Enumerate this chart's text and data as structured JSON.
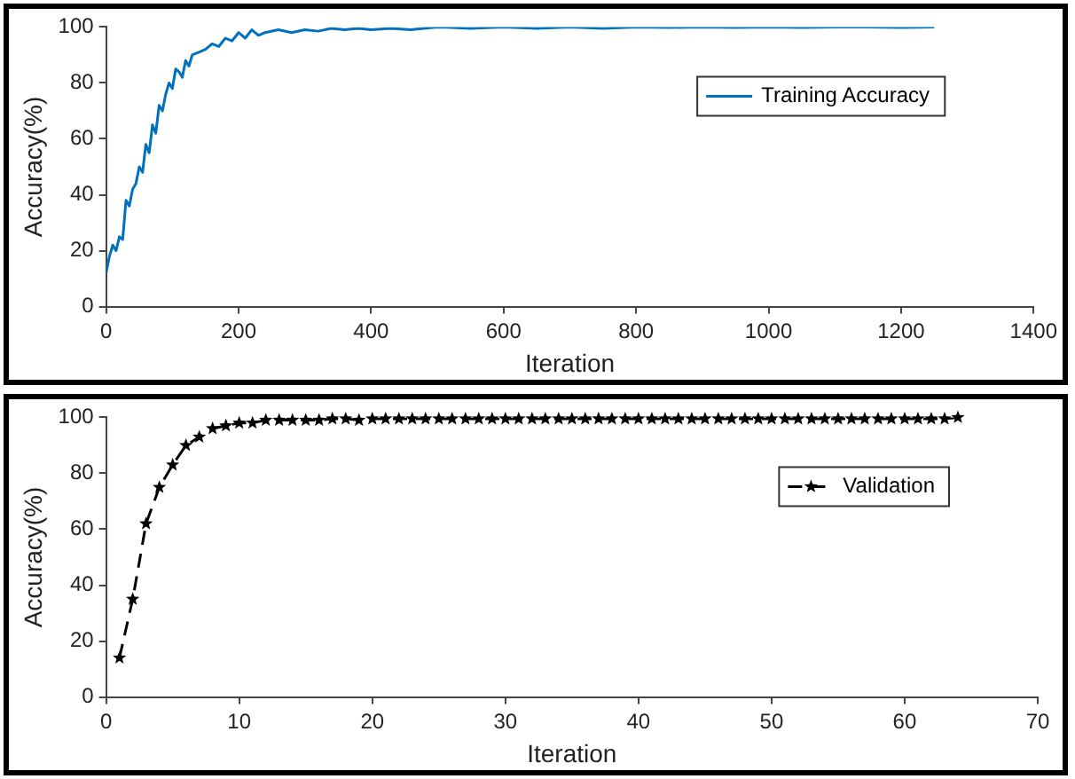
{
  "chart_data": [
    {
      "type": "line",
      "xlabel": "Iteration",
      "ylabel": "Accuracy(%)",
      "xlim": [
        0,
        1400
      ],
      "xticks": [
        0,
        200,
        400,
        600,
        800,
        1000,
        1200,
        1400
      ],
      "ylim": [
        0,
        100
      ],
      "yticks": [
        0,
        20,
        40,
        60,
        80,
        100
      ],
      "grid": false,
      "legend": "top right",
      "marker": "none",
      "line_style": "solid",
      "series": [
        {
          "name": "Training Accuracy",
          "color": "#0072bd",
          "x": [
            0,
            5,
            10,
            15,
            20,
            25,
            30,
            35,
            40,
            45,
            50,
            55,
            60,
            65,
            70,
            75,
            80,
            85,
            90,
            95,
            100,
            105,
            110,
            115,
            120,
            125,
            130,
            140,
            150,
            160,
            170,
            180,
            190,
            200,
            210,
            220,
            230,
            240,
            260,
            280,
            300,
            320,
            340,
            360,
            380,
            400,
            430,
            460,
            500,
            550,
            600,
            650,
            700,
            750,
            800,
            850,
            900,
            950,
            1000,
            1050,
            1100,
            1150,
            1200,
            1250
          ],
          "values": [
            12,
            18,
            22,
            20,
            25,
            24,
            38,
            36,
            42,
            44,
            50,
            48,
            58,
            55,
            65,
            62,
            72,
            70,
            76,
            80,
            78,
            85,
            84,
            82,
            88,
            86,
            90,
            91,
            92,
            94,
            93,
            96,
            95,
            98,
            96,
            99,
            97,
            98,
            99,
            98,
            99,
            98.5,
            99.5,
            99,
            99.5,
            99,
            99.5,
            99,
            100,
            99.5,
            100,
            99.5,
            100,
            99.5,
            100,
            99.8,
            100,
            99.8,
            100,
            99.8,
            100,
            100,
            99.8,
            100
          ]
        }
      ]
    },
    {
      "type": "line",
      "xlabel": "Iteration",
      "ylabel": "Accuracy(%)",
      "xlim": [
        0,
        70
      ],
      "xticks": [
        0,
        10,
        20,
        30,
        40,
        50,
        60,
        70
      ],
      "ylim": [
        0,
        100
      ],
      "yticks": [
        0,
        20,
        40,
        60,
        80,
        100
      ],
      "grid": false,
      "legend": "top right",
      "marker": "star",
      "line_style": "dashed",
      "series": [
        {
          "name": "Validation",
          "color": "#000000",
          "x": [
            1,
            2,
            3,
            4,
            5,
            6,
            7,
            8,
            9,
            10,
            11,
            12,
            13,
            14,
            15,
            16,
            17,
            18,
            19,
            20,
            21,
            22,
            23,
            24,
            25,
            26,
            27,
            28,
            29,
            30,
            31,
            32,
            33,
            34,
            35,
            36,
            37,
            38,
            39,
            40,
            41,
            42,
            43,
            44,
            45,
            46,
            47,
            48,
            49,
            50,
            51,
            52,
            53,
            54,
            55,
            56,
            57,
            58,
            59,
            60,
            61,
            62,
            63,
            64
          ],
          "values": [
            14,
            35,
            62,
            75,
            83,
            90,
            93,
            96,
            97,
            98,
            98,
            99,
            99,
            99,
            99,
            99,
            99.5,
            99.5,
            99,
            99.5,
            99.5,
            99.5,
            99.5,
            99.5,
            99.5,
            99.5,
            99.5,
            99.5,
            99.5,
            99.5,
            99.5,
            99.5,
            99.5,
            99.5,
            99.5,
            99.5,
            99.5,
            99.5,
            99.5,
            99.5,
            99.5,
            99.5,
            99.5,
            99.5,
            99.5,
            99.5,
            99.5,
            99.5,
            99.5,
            99.5,
            99.5,
            99.5,
            99.5,
            99.5,
            99.5,
            99.5,
            99.5,
            99.5,
            99.5,
            99.5,
            99.5,
            99.5,
            99.5,
            100
          ]
        }
      ]
    }
  ]
}
